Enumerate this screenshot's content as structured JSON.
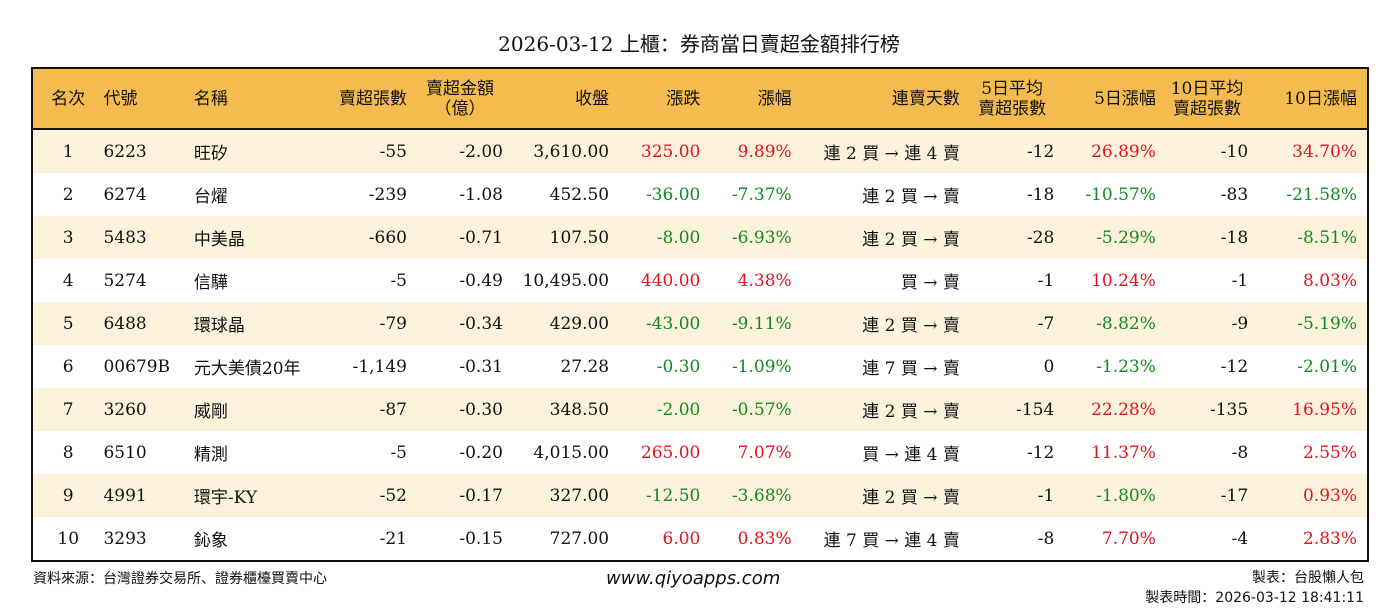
{
  "title": "2026-03-12 上櫃：券商當日賣超金額排行榜",
  "headers": [
    "名次",
    "代號",
    "名稱",
    "賣超張數",
    "賣超金額\n（億）",
    "收盤",
    "漲跌",
    "漲幅",
    "連賣天數",
    "5日平均\n賣超張數",
    "5日漲幅",
    "10日平均\n賣超張數",
    "10日漲幅"
  ],
  "colors": {
    "header_bg": "#f4bc4f",
    "row_alt": "#fdf3dc",
    "up": "#e0141e",
    "down": "#118a1f"
  },
  "rows": [
    [
      "1",
      "6223",
      "旺矽",
      "-55",
      "-2.00",
      "3,610.00",
      "325.00",
      "9.89%",
      "連 2 買 → 連 4 賣",
      "-12",
      "26.89%",
      "-10",
      "34.70%"
    ],
    [
      "2",
      "6274",
      "台燿",
      "-239",
      "-1.08",
      "452.50",
      "-36.00",
      "-7.37%",
      "連 2 買 → 賣",
      "-18",
      "-10.57%",
      "-83",
      "-21.58%"
    ],
    [
      "3",
      "5483",
      "中美晶",
      "-660",
      "-0.71",
      "107.50",
      "-8.00",
      "-6.93%",
      "連 2 買 → 賣",
      "-28",
      "-5.29%",
      "-18",
      "-8.51%"
    ],
    [
      "4",
      "5274",
      "信驊",
      "-5",
      "-0.49",
      "10,495.00",
      "440.00",
      "4.38%",
      "買 → 賣",
      "-1",
      "10.24%",
      "-1",
      "8.03%"
    ],
    [
      "5",
      "6488",
      "環球晶",
      "-79",
      "-0.34",
      "429.00",
      "-43.00",
      "-9.11%",
      "連 2 買 → 賣",
      "-7",
      "-8.82%",
      "-9",
      "-5.19%"
    ],
    [
      "6",
      "00679B",
      "元大美債20年",
      "-1,149",
      "-0.31",
      "27.28",
      "-0.30",
      "-1.09%",
      "連 7 買 → 賣",
      "0",
      "-1.23%",
      "-12",
      "-2.01%"
    ],
    [
      "7",
      "3260",
      "威剛",
      "-87",
      "-0.30",
      "348.50",
      "-2.00",
      "-0.57%",
      "連 2 買 → 賣",
      "-154",
      "22.28%",
      "-135",
      "16.95%"
    ],
    [
      "8",
      "6510",
      "精測",
      "-5",
      "-0.20",
      "4,015.00",
      "265.00",
      "7.07%",
      "買 → 連 4 賣",
      "-12",
      "11.37%",
      "-8",
      "2.55%"
    ],
    [
      "9",
      "4991",
      "環宇-KY",
      "-52",
      "-0.17",
      "327.00",
      "-12.50",
      "-3.68%",
      "連 2 買 → 賣",
      "-1",
      "-1.80%",
      "-17",
      "0.93%"
    ],
    [
      "10",
      "3293",
      "鈊象",
      "-21",
      "-0.15",
      "727.00",
      "6.00",
      "0.83%",
      "連 7 買 → 連 4 賣",
      "-8",
      "7.70%",
      "-4",
      "2.83%"
    ]
  ],
  "footer": {
    "source": "資料來源：台灣證券交易所、證券櫃檯買賣中心",
    "site": "www.qiyoapps.com",
    "maker": "製表：台股懶人包",
    "time": "製表時間：2026-03-12 18:41:11"
  }
}
